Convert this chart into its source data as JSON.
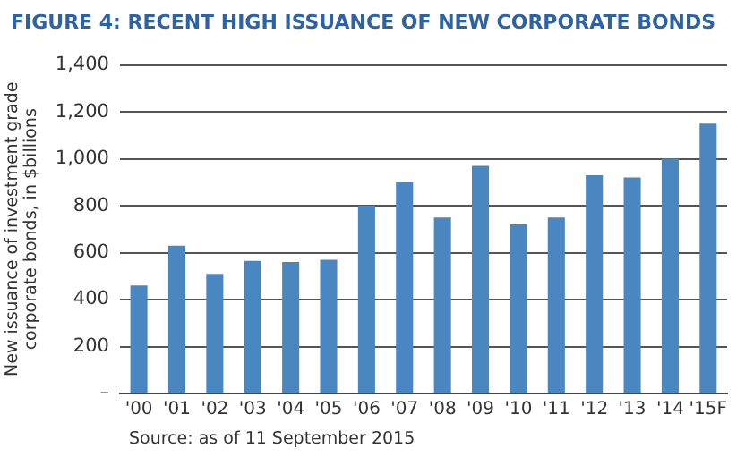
{
  "chart_data": {
    "type": "bar",
    "title": "FIGURE 4: RECENT HIGH ISSUANCE OF NEW CORPORATE BONDS",
    "ylabel": "New issuance of investment grade corporate bonds, in $billions",
    "categories": [
      "'00",
      "'01",
      "'02",
      "'03",
      "'04",
      "'05",
      "'06",
      "'07",
      "'08",
      "'09",
      "'10",
      "'11",
      "'12",
      "'13",
      "'14",
      "'15F"
    ],
    "values": [
      460,
      630,
      510,
      565,
      560,
      570,
      800,
      900,
      750,
      970,
      720,
      750,
      930,
      920,
      1000,
      1150
    ],
    "color": "#4a86bf",
    "ylim": [
      0,
      1400
    ],
    "yticks": [
      {
        "value": 0,
        "label": "–"
      },
      {
        "value": 200,
        "label": "200"
      },
      {
        "value": 400,
        "label": "400"
      },
      {
        "value": 600,
        "label": "600"
      },
      {
        "value": 800,
        "label": "800"
      },
      {
        "value": 1000,
        "label": "1,000"
      },
      {
        "value": 1200,
        "label": "1,200"
      },
      {
        "value": 1400,
        "label": "1,400"
      }
    ],
    "grid": "y",
    "legend": false,
    "annotations": [
      "Source: as of 11 September 2015"
    ]
  }
}
